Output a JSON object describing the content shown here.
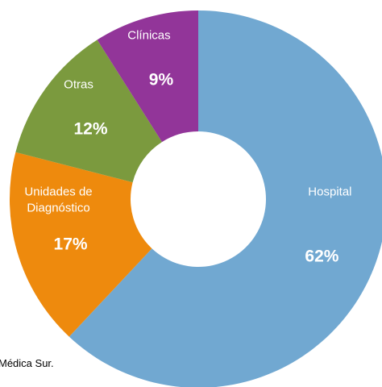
{
  "chart_data": {
    "type": "donut",
    "categories": [
      "Hospital",
      "Unidades de Diagnóstico",
      "Otras",
      "Clínicas"
    ],
    "values": [
      62,
      17,
      12,
      9
    ],
    "value_labels": [
      "62%",
      "17%",
      "12%",
      "9%"
    ],
    "colors": [
      "#71a8d1",
      "#ee8a0d",
      "#7b9a3e",
      "#923599"
    ],
    "note": "Médica Sur."
  }
}
